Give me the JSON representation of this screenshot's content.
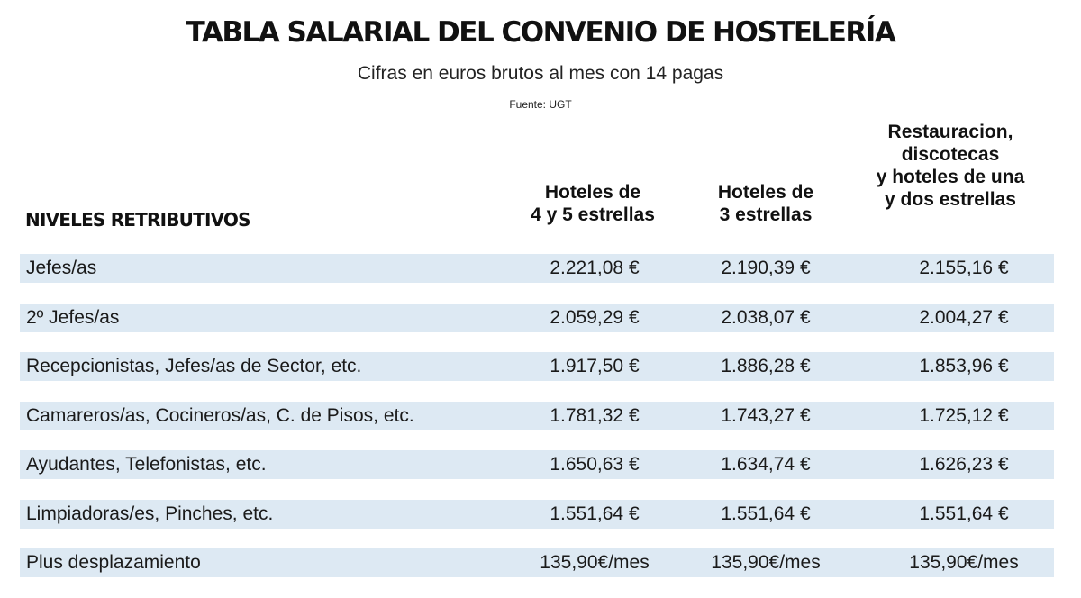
{
  "header": {
    "title": "TABLA SALARIAL DEL CONVENIO DE HOSTELERÍA",
    "subtitle": "Cifras en euros brutos al mes con 14 pagas",
    "source": "Fuente: UGT"
  },
  "table": {
    "row_header": "NIVELES RETRIBUTIVOS",
    "columns": [
      "Hoteles de\n4 y 5 estrellas",
      "Hoteles de\n3 estrellas",
      "Restauracion,\ndiscotecas\ny hoteles de una\ny dos estrellas"
    ],
    "rows": [
      {
        "label": "Jefes/as",
        "values": [
          "2.221,08 €",
          "2.190,39 €",
          "2.155,16  €"
        ]
      },
      {
        "label": "2º Jefes/as",
        "values": [
          "2.059,29 €",
          "2.038,07 €",
          "2.004,27 €"
        ]
      },
      {
        "label": "Recepcionistas, Jefes/as de Sector, etc.",
        "values": [
          "1.917,50 €",
          "1.886,28 €",
          "1.853,96  €"
        ]
      },
      {
        "label": "Camareros/as, Cocineros/as, C. de Pisos, etc.",
        "values": [
          "1.781,32 €",
          "1.743,27 €",
          "1.725,12 €"
        ]
      },
      {
        "label": "Ayudantes, Telefonistas, etc.",
        "values": [
          "1.650,63 €",
          "1.634,74 €",
          "1.626,23 €"
        ]
      },
      {
        "label": "Limpiadoras/es, Pinches, etc.",
        "values": [
          "1.551,64 €",
          "1.551,64 €",
          "1.551,64 €"
        ]
      },
      {
        "label": "Plus desplazamiento",
        "values": [
          "135,90€/mes",
          "135,90€/mes",
          "135,90€/mes"
        ]
      }
    ]
  },
  "colors": {
    "row_band": "#dde9f3",
    "text": "#1a1a1a"
  }
}
